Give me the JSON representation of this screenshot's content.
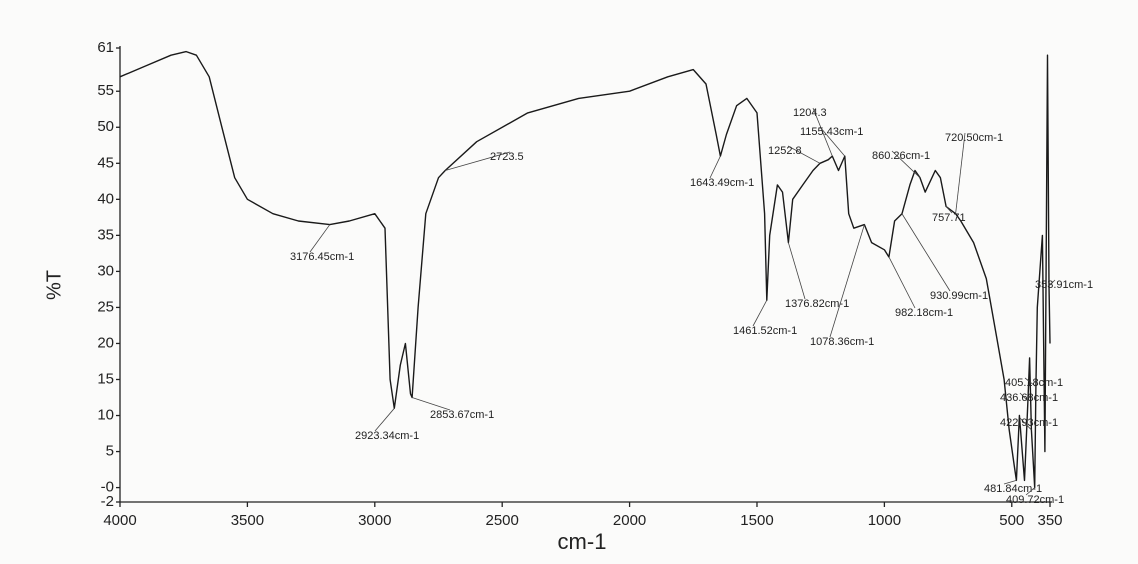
{
  "chart_data": {
    "type": "line",
    "xlabel": "cm-1",
    "ylabel": "%T",
    "color": "#1a1a1a",
    "xlim": [
      4000,
      350
    ],
    "ylim": [
      -2,
      61
    ],
    "xticks": [
      4000,
      3500,
      3000,
      2500,
      2000,
      1500,
      1000,
      500,
      350
    ],
    "yticks": [
      61,
      55,
      50,
      45,
      40,
      35,
      30,
      25,
      20,
      15,
      10,
      5,
      {
        "value": 0,
        "label": "-0"
      },
      -2
    ],
    "x": [
      4000,
      3900,
      3800,
      3740,
      3700,
      3650,
      3600,
      3550,
      3500,
      3400,
      3300,
      3176.45,
      3100,
      3000,
      2960,
      2940,
      2923.34,
      2900,
      2880,
      2860,
      2853.67,
      2830,
      2800,
      2750,
      2723.5,
      2600,
      2400,
      2200,
      2000,
      1850,
      1750,
      1700,
      1660,
      1643.49,
      1620,
      1580,
      1540,
      1500,
      1470,
      1461.52,
      1450,
      1420,
      1400,
      1376.82,
      1360,
      1320,
      1280,
      1252.8,
      1220,
      1204.3,
      1180,
      1155.43,
      1140,
      1120,
      1078.36,
      1050,
      1000,
      982.18,
      960,
      930.99,
      900,
      880,
      860.26,
      840,
      800,
      780,
      757.71,
      720.5,
      700,
      650,
      600,
      560,
      530,
      510,
      490,
      481.84,
      470,
      450,
      436.68,
      430,
      422.93,
      410,
      405.18,
      400,
      380,
      370,
      360,
      353.91,
      350
    ],
    "values": [
      57,
      58.5,
      60,
      60.5,
      60,
      57,
      50,
      43,
      40,
      38,
      37,
      36.5,
      37,
      38,
      36,
      15,
      11,
      17,
      20,
      13,
      12.5,
      25,
      38,
      43,
      44,
      48,
      52,
      54,
      55,
      57,
      58,
      56,
      49,
      46,
      49,
      53,
      54,
      52,
      38,
      26,
      35,
      42,
      41,
      34,
      40,
      42,
      44,
      45,
      45.5,
      46,
      44,
      46,
      38,
      36,
      36.5,
      34,
      33,
      32,
      37,
      38,
      42,
      44,
      43,
      41,
      44,
      43,
      39,
      38,
      37,
      34,
      29,
      21,
      15,
      8,
      3,
      1,
      10,
      1,
      12,
      18,
      8,
      0,
      14,
      25,
      35,
      5,
      60,
      28,
      20
    ],
    "annotations": [
      {
        "text": "3176.45cm-1",
        "x": 3176.45,
        "y": 36.5
      },
      {
        "text": "2923.34cm-1",
        "x": 2923.34,
        "y": 11
      },
      {
        "text": "2853.67cm-1",
        "x": 2853.67,
        "y": 12.5
      },
      {
        "text": "2723.5",
        "x": 2723.5,
        "y": 44
      },
      {
        "text": "1643.49cm-1",
        "x": 1643.49,
        "y": 46
      },
      {
        "text": "1461.52cm-1",
        "x": 1461.52,
        "y": 26
      },
      {
        "text": "1376.82cm-1",
        "x": 1376.82,
        "y": 34
      },
      {
        "text": "1252.8",
        "x": 1252.8,
        "y": 45
      },
      {
        "text": "1204.3",
        "x": 1204.3,
        "y": 46
      },
      {
        "text": "1155.43cm-1",
        "x": 1155.43,
        "y": 46
      },
      {
        "text": "1078.36cm-1",
        "x": 1078.36,
        "y": 36.5
      },
      {
        "text": "982.18cm-1",
        "x": 982.18,
        "y": 32
      },
      {
        "text": "930.99cm-1",
        "x": 930.99,
        "y": 38
      },
      {
        "text": "860.26cm-1",
        "x": 860.26,
        "y": 43
      },
      {
        "text": "720.50cm-1",
        "x": 720.5,
        "y": 38
      },
      {
        "text": "757.71",
        "x": 757.71,
        "y": 39
      },
      {
        "text": "353.91cm-1",
        "x": 353.91,
        "y": 28
      },
      {
        "text": "405.18cm-1",
        "x": 405.18,
        "y": 14
      },
      {
        "text": "436.68cm-1",
        "x": 436.68,
        "y": 12
      },
      {
        "text": "422.93cm-1",
        "x": 422.93,
        "y": 8
      },
      {
        "text": "481.84cm-1",
        "x": 481.84,
        "y": 1
      },
      {
        "text": "409.72cm-1",
        "x": 409.72,
        "y": 0
      }
    ]
  }
}
